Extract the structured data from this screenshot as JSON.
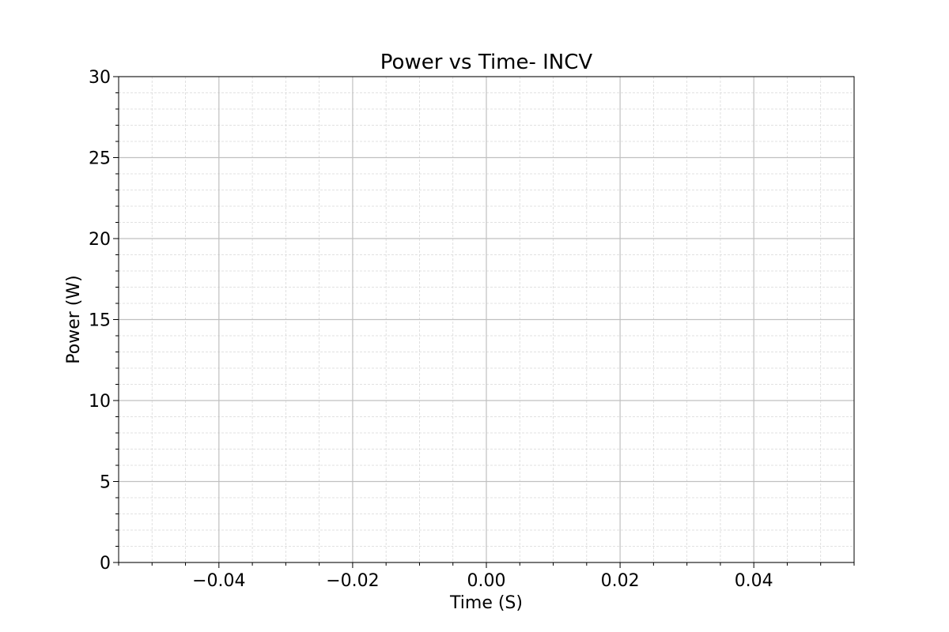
{
  "chart_data": {
    "type": "line",
    "title": "Power vs Time- INCV",
    "xlabel": "Time (S)",
    "ylabel": "Power (W)",
    "xlim": [
      -0.055,
      0.055
    ],
    "ylim": [
      0,
      30
    ],
    "x_ticks": [
      -0.04,
      -0.02,
      0.0,
      0.02,
      0.04
    ],
    "x_tick_labels": [
      "−0.04",
      "−0.02",
      "0.00",
      "0.02",
      "0.04"
    ],
    "x_minor_step": 0.005,
    "y_ticks": [
      0,
      5,
      10,
      15,
      20,
      25,
      30
    ],
    "y_tick_labels": [
      "0",
      "5",
      "10",
      "15",
      "20",
      "25",
      "30"
    ],
    "y_minor_step": 1,
    "grid": true,
    "minor_grid": true,
    "series": [],
    "colors": {
      "major_grid": "#c0c0c0",
      "minor_grid": "#d8d8d8",
      "axes": "#000000"
    }
  }
}
